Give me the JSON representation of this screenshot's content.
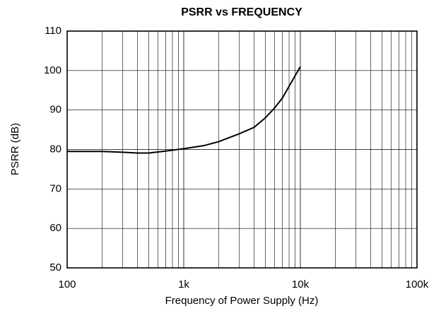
{
  "chart_data": {
    "type": "line",
    "title": "PSRR vs FREQUENCY",
    "xlabel": "Frequency of Power Supply (Hz)",
    "ylabel": "PSRR (dB)",
    "x": [
      100,
      200,
      300,
      400,
      500,
      700,
      1000,
      1500,
      2000,
      3000,
      4000,
      5000,
      6000,
      7000,
      8000,
      10000
    ],
    "series": [
      {
        "name": "PSRR",
        "color": "#000000",
        "values": [
          79.5,
          79.5,
          79.3,
          79.1,
          79.1,
          79.6,
          80.2,
          81,
          82,
          84,
          85.6,
          88,
          90.5,
          93,
          96,
          101
        ]
      }
    ],
    "xscale": "log",
    "xlim": [
      100,
      100000
    ],
    "xticks": [
      100,
      {
        "value": 1000,
        "label": "1k"
      },
      {
        "value": 10000,
        "label": "10k"
      },
      {
        "value": 100000,
        "label": "100k"
      }
    ],
    "ylim": [
      50,
      110
    ],
    "yticks": [
      50,
      60,
      70,
      80,
      90,
      100,
      110
    ],
    "grid": true,
    "minor_grid": true
  }
}
